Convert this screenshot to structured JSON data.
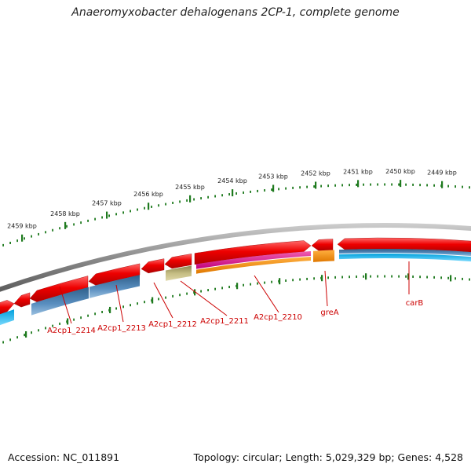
{
  "title": "Anaeromyxobacter dehalogenans 2CP-1, complete genome",
  "footer": {
    "accession": "Accession: NC_011891",
    "topology": "Topology: circular; Length: 5,029,329 bp; Genes: 4,528"
  },
  "ruler": {
    "tick_labels": [
      "2459 kbp",
      "2458 kbp",
      "2457 kbp",
      "2456 kbp",
      "2455 kbp",
      "2454 kbp",
      "2453 kbp",
      "2452 kbp",
      "2451 kbp",
      "2450 kbp",
      "2449 kbp"
    ]
  },
  "genes": [
    {
      "label": "A2cp1_2214"
    },
    {
      "label": "A2cp1_2213"
    },
    {
      "label": "A2cp1_2212"
    },
    {
      "label": "A2cp1_2211"
    },
    {
      "label": "A2cp1_2210"
    },
    {
      "label": "greA"
    },
    {
      "label": "carB"
    }
  ],
  "colors": {
    "cds": "#e00000",
    "gene_label": "#cc0000",
    "ruler": "#1e7a1e",
    "backbone": "#8a8a8a",
    "feature_blue": "#4a7fb0",
    "feature_cyan": "#00b0e8",
    "feature_khaki": "#bdb47a",
    "feature_magenta": "#e0208c",
    "feature_orange": "#f08c00"
  }
}
